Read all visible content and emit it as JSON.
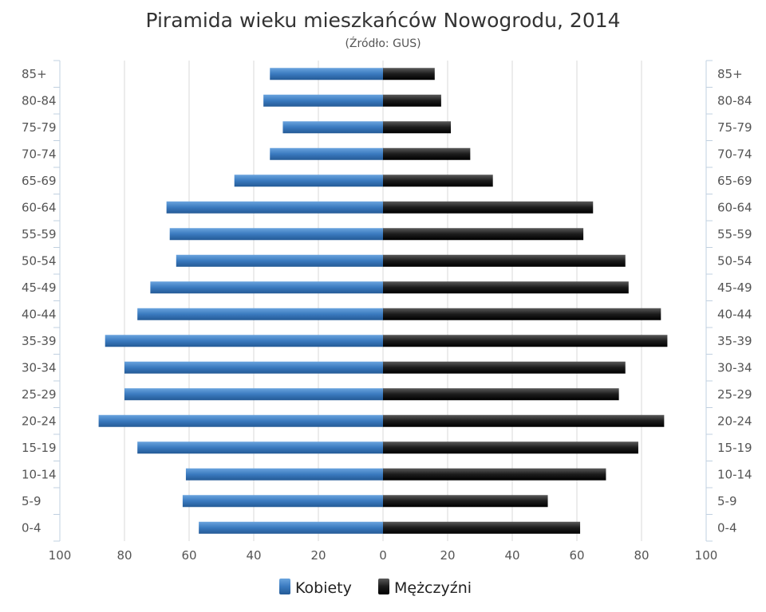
{
  "chart_data": {
    "type": "bar",
    "orientation": "horizontal",
    "title": "Piramida wieku mieszkańców Nowogrodu, 2014",
    "subtitle": "(Źródło: GUS)",
    "categories": [
      "85+",
      "80-84",
      "75-79",
      "70-74",
      "65-69",
      "60-64",
      "55-59",
      "50-54",
      "45-49",
      "40-44",
      "35-39",
      "30-34",
      "25-29",
      "20-24",
      "15-19",
      "10-14",
      "5-9",
      "0-4"
    ],
    "series": [
      {
        "name": "Kobiety",
        "side": "left",
        "color": "#3a7abf",
        "values": [
          35,
          37,
          31,
          35,
          46,
          67,
          66,
          64,
          72,
          76,
          86,
          80,
          80,
          88,
          76,
          61,
          62,
          57
        ]
      },
      {
        "name": "Mężczyźni",
        "side": "right",
        "color": "#1a1a1a",
        "values": [
          16,
          18,
          21,
          27,
          34,
          65,
          62,
          75,
          76,
          86,
          88,
          75,
          73,
          87,
          79,
          69,
          51,
          61
        ]
      }
    ],
    "xlim": [
      -100,
      100
    ],
    "x_ticks": [
      "100",
      "80",
      "60",
      "40",
      "20",
      "0",
      "20",
      "40",
      "60",
      "80",
      "100"
    ],
    "grid": true,
    "legend_position": "bottom"
  }
}
